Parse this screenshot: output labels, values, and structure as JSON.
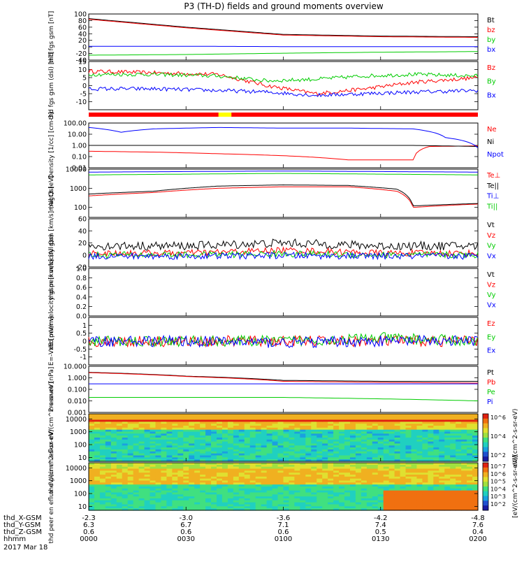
{
  "title": "P3 (TH-D) fields and ground moments overview",
  "chart_data": [
    {
      "type": "line",
      "ylabel": "thd fgs gsm [nT]",
      "ylim": [
        -40,
        100
      ],
      "yticks": [
        "100",
        "80",
        "60",
        "40",
        "20",
        "0",
        "-20",
        "-40"
      ],
      "series": [
        {
          "name": "Bt",
          "color": "#000000",
          "x": [
            0,
            30,
            60,
            90,
            120
          ],
          "values": [
            86,
            60,
            38,
            33,
            31
          ]
        },
        {
          "name": "bz",
          "color": "#ff0000",
          "x": [
            0,
            30,
            60,
            90,
            120
          ],
          "values": [
            84,
            58,
            36,
            31,
            29
          ]
        },
        {
          "name": "by",
          "color": "#00cc00",
          "x": [
            0,
            30,
            60,
            90,
            120
          ],
          "values": [
            -25,
            -23,
            -19,
            -16,
            -14
          ]
        },
        {
          "name": "bx",
          "color": "#0000ff",
          "x": [
            0,
            30,
            60,
            90,
            120
          ],
          "values": [
            2,
            2,
            1,
            1,
            1
          ]
        }
      ]
    },
    {
      "type": "line",
      "ylabel": "thd fgs gsm (dsl) [nT]",
      "ylim": [
        -15,
        15
      ],
      "yticks": [
        "15",
        "10",
        "5",
        "0",
        "-5",
        "-10"
      ],
      "series": [
        {
          "name": "Bz",
          "color": "#ff0000",
          "x": [
            0,
            20,
            40,
            55,
            70,
            85,
            100,
            120
          ],
          "values": [
            9,
            8,
            7,
            0,
            -5,
            -2,
            2,
            5
          ]
        },
        {
          "name": "By",
          "color": "#00cc00",
          "x": [
            0,
            20,
            40,
            55,
            70,
            85,
            100,
            120
          ],
          "values": [
            7,
            7,
            6,
            3,
            4,
            6,
            7,
            6
          ]
        },
        {
          "name": "Bx",
          "color": "#0000ff",
          "x": [
            0,
            20,
            40,
            55,
            70,
            85,
            100,
            120
          ],
          "values": [
            -2,
            -2,
            -3,
            -4,
            -6,
            -5,
            -4,
            -3
          ]
        }
      ]
    },
    {
      "type": "line",
      "ylabel": "Density [1/cc] [cm-3]",
      "scale": "log",
      "ylim": [
        0.01,
        100
      ],
      "yticks": [
        "100.00",
        "10.00",
        "1.00",
        "0.10",
        "0.01"
      ],
      "series": [
        {
          "name": "Ne",
          "color": "#ff0000",
          "x": [
            0,
            20,
            40,
            60,
            80,
            100,
            105,
            120
          ],
          "values": [
            0.3,
            0.25,
            0.18,
            0.12,
            0.05,
            0.05,
            0.8,
            0.9
          ]
        },
        {
          "name": "Ni",
          "color": "#000000",
          "x": [
            0,
            20,
            40,
            60,
            80,
            100,
            120
          ],
          "values": [
            1.0,
            1.0,
            1.0,
            1.0,
            1.0,
            1.0,
            0.8
          ]
        },
        {
          "name": "Npot",
          "color": "#0000ff",
          "x": [
            0,
            10,
            20,
            40,
            60,
            80,
            100,
            110,
            120
          ],
          "values": [
            40,
            15,
            30,
            40,
            35,
            35,
            30,
            5,
            0.6
          ]
        }
      ]
    },
    {
      "type": "line",
      "ylabel": "magt3 [eV]",
      "scale": "log",
      "ylim": [
        30,
        10000
      ],
      "yticks": [
        "10000",
        "1000",
        "100"
      ],
      "series": [
        {
          "name": "Te⊥",
          "color": "#ff0000",
          "x": [
            0,
            10,
            20,
            40,
            60,
            80,
            95,
            100,
            120
          ],
          "values": [
            400,
            500,
            600,
            1000,
            1200,
            1200,
            700,
            100,
            150
          ]
        },
        {
          "name": "Te||",
          "color": "#000000",
          "x": [
            0,
            10,
            20,
            40,
            60,
            80,
            95,
            100,
            120
          ],
          "values": [
            500,
            600,
            700,
            1300,
            1500,
            1400,
            900,
            120,
            160
          ]
        },
        {
          "name": "Ti⊥",
          "color": "#0000ff",
          "x": [
            0,
            30,
            60,
            90,
            120
          ],
          "values": [
            7000,
            7500,
            8000,
            7500,
            7000
          ]
        },
        {
          "name": "Ti||",
          "color": "#00cc00",
          "x": [
            0,
            30,
            60,
            90,
            120
          ],
          "values": [
            5000,
            5500,
            6000,
            5500,
            5000
          ]
        }
      ]
    },
    {
      "type": "line",
      "ylabel": "thd peir velocity gsm [km/s] (All Qs)",
      "ylim": [
        -20,
        60
      ],
      "yticks": [
        "60",
        "40",
        "20",
        "0",
        "-20"
      ],
      "series": [
        {
          "name": "Vt",
          "color": "#000000",
          "x": [
            0,
            30,
            60,
            90,
            120
          ],
          "values": [
            15,
            15,
            20,
            15,
            15
          ]
        },
        {
          "name": "Vz",
          "color": "#ff0000",
          "x": [
            0,
            30,
            60,
            90,
            120
          ],
          "values": [
            3,
            3,
            8,
            3,
            3
          ]
        },
        {
          "name": "Vy",
          "color": "#00cc00",
          "x": [
            0,
            30,
            60,
            90,
            120
          ],
          "values": [
            0,
            0,
            2,
            0,
            0
          ]
        },
        {
          "name": "Vx",
          "color": "#0000ff",
          "x": [
            0,
            30,
            60,
            90,
            120
          ],
          "values": [
            -2,
            -2,
            -1,
            -2,
            -2
          ]
        }
      ]
    },
    {
      "type": "line",
      "ylabel": "thd peer velocity gsm [km/s] (All Qs)",
      "ylim": [
        0,
        1
      ],
      "yticks": [
        "1.0",
        "0.8",
        "0.6",
        "0.4",
        "0.2",
        "0.0"
      ],
      "series": [
        {
          "name": "Vt",
          "color": "#000000",
          "x": [],
          "values": []
        },
        {
          "name": "Vz",
          "color": "#ff0000",
          "x": [],
          "values": []
        },
        {
          "name": "Vy",
          "color": "#00cc00",
          "x": [],
          "values": []
        },
        {
          "name": "Vx",
          "color": "#0000ff",
          "x": [],
          "values": []
        }
      ]
    },
    {
      "type": "line",
      "ylabel": "E=-VxB [mV/m]",
      "ylim": [
        -1.5,
        1.5
      ],
      "yticks": [
        "1",
        "0.5",
        "0",
        "-0.5",
        "-1"
      ],
      "series": [
        {
          "name": "Ez",
          "color": "#ff0000",
          "x": [
            0,
            30,
            60,
            90,
            120
          ],
          "values": [
            0,
            0,
            0,
            0,
            0
          ]
        },
        {
          "name": "Ey",
          "color": "#00cc00",
          "x": [
            0,
            30,
            60,
            90,
            120
          ],
          "values": [
            0,
            0,
            0,
            0.2,
            0
          ]
        },
        {
          "name": "Ex",
          "color": "#0000ff",
          "x": [
            0,
            30,
            60,
            90,
            120
          ],
          "values": [
            0,
            0,
            -0.1,
            0,
            0
          ]
        }
      ]
    },
    {
      "type": "line",
      "ylabel": "Pressure [nPa]",
      "scale": "log",
      "ylim": [
        0.001,
        10
      ],
      "yticks": [
        "10.000",
        "1.000",
        "0.100",
        "0.010",
        "0.001"
      ],
      "series": [
        {
          "name": "Pt",
          "color": "#000000",
          "x": [
            0,
            30,
            60,
            90,
            120
          ],
          "values": [
            3.0,
            1.4,
            0.6,
            0.5,
            0.5
          ]
        },
        {
          "name": "Pb",
          "color": "#ff0000",
          "x": [
            0,
            30,
            60,
            90,
            120
          ],
          "values": [
            2.8,
            1.3,
            0.5,
            0.4,
            0.35
          ]
        },
        {
          "name": "Pe",
          "color": "#00cc00",
          "x": [
            0,
            30,
            60,
            90,
            120
          ],
          "values": [
            0.02,
            0.02,
            0.02,
            0.015,
            0.01
          ]
        },
        {
          "name": "Pi",
          "color": "#0000ff",
          "x": [
            0,
            30,
            60,
            90,
            120
          ],
          "values": [
            0.3,
            0.3,
            0.3,
            0.3,
            0.3
          ]
        }
      ]
    },
    {
      "type": "heatmap",
      "ylabel": "thd peir en eflux eV/(cm^2-s-sr-eV)",
      "scale": "log",
      "ylim": [
        5,
        25000
      ],
      "yticks": [
        "10000",
        "1000",
        "100",
        "10"
      ],
      "colorbar": {
        "ticks": [
          "10^6",
          "10^4",
          "10^2"
        ],
        "label": "eV/(cm^2-s-sr-eV)"
      }
    },
    {
      "type": "heatmap",
      "ylabel": "thd peer en eflux eV/(cm^2-s-sr-eV)",
      "scale": "log",
      "ylim": [
        5,
        25000
      ],
      "yticks": [
        "10000",
        "1000",
        "100",
        "10"
      ],
      "colorbar": {
        "ticks": [
          "10^7",
          "10^6",
          "10^5",
          "10^4",
          "10^3",
          "10^2"
        ],
        "label": "[eV/(cm^2-s-sr-eV)]"
      }
    }
  ],
  "x_axis": {
    "rows": [
      "thd_X-GSM",
      "thd_Y-GSM",
      "thd_Z-GSM",
      "hhmm",
      "2017 Mar 18"
    ],
    "ticks": [
      {
        "x": "-2.3",
        "y": "6.3",
        "z": "0.6",
        "t": "0000"
      },
      {
        "x": "-3.0",
        "y": "6.7",
        "z": "0.6",
        "t": "0030"
      },
      {
        "x": "-3.6",
        "y": "7.1",
        "z": "0.6",
        "t": "0100"
      },
      {
        "x": "-4.2",
        "y": "7.4",
        "z": "0.5",
        "t": "0130"
      },
      {
        "x": "-4.8",
        "y": "7.6",
        "z": "0.4",
        "t": "0200"
      }
    ]
  },
  "colors": {
    "bar_red": "#ff0000",
    "bar_yellow": "#ffff00"
  }
}
